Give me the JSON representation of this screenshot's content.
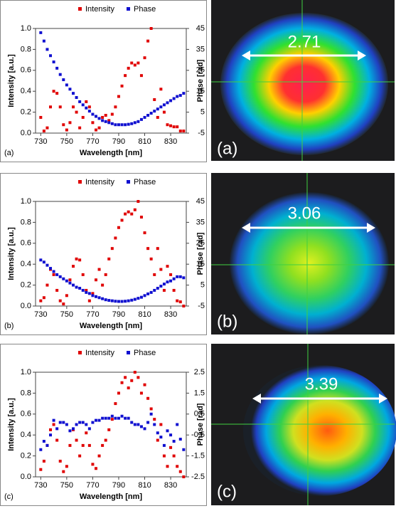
{
  "chart_data": [
    {
      "type": "scatter",
      "panel_label": "(a)",
      "xlabel": "Wavelength [nm]",
      "ylabel": "Intensity [a.u.]",
      "y2label": "Phase [rad]",
      "x": [
        730,
        732.5,
        735,
        737.5,
        740,
        742.5,
        745,
        747.5,
        750,
        752.5,
        755,
        757.5,
        760,
        762.5,
        765,
        767.5,
        770,
        772.5,
        775,
        777.5,
        780,
        782.5,
        785,
        787.5,
        790,
        792.5,
        795,
        797.5,
        800,
        802.5,
        805,
        807.5,
        810,
        812.5,
        815,
        817.5,
        820,
        822.5,
        825,
        827.5,
        830,
        832.5,
        835,
        837.5,
        840
      ],
      "series": [
        {
          "name": "Intensity",
          "color": "#e00000",
          "values": [
            0.15,
            0.02,
            0.05,
            0.25,
            0.4,
            0.38,
            0.25,
            0.08,
            0.03,
            0.1,
            0.25,
            0.2,
            0.05,
            0.15,
            0.3,
            0.25,
            0.1,
            0.03,
            0.05,
            0.15,
            0.17,
            0.12,
            0.18,
            0.25,
            0.35,
            0.45,
            0.55,
            0.62,
            0.67,
            0.65,
            0.67,
            0.55,
            0.72,
            0.88,
            1.0,
            0.32,
            0.15,
            0.42,
            0.2,
            0.08,
            0.07,
            0.06,
            0.06,
            0.02,
            0.02
          ]
        },
        {
          "name": "Phase",
          "color": "#1010d0",
          "axis": "y2",
          "values": [
            43,
            39,
            35,
            32,
            29,
            26,
            23,
            20.5,
            18,
            16,
            14,
            12,
            10,
            8.5,
            7,
            5.5,
            4,
            3,
            2,
            1,
            0.5,
            0,
            -0.5,
            -1,
            -1,
            -1,
            -1,
            -0.8,
            -0.5,
            0,
            0.5,
            1.5,
            2.5,
            3.5,
            4.5,
            5.5,
            6.5,
            7.5,
            8.5,
            9.5,
            10.5,
            11.5,
            12.5,
            13,
            14
          ]
        }
      ],
      "xlim": [
        726,
        842
      ],
      "xticks": [
        730,
        750,
        770,
        790,
        810,
        830
      ],
      "ylim": [
        0,
        1
      ],
      "yticks": [
        {
          "value": 0,
          "label": "0.0"
        },
        0.2,
        0.4,
        0.6,
        0.8,
        {
          "value": 1,
          "label": "1.0"
        }
      ],
      "y2lim": [
        -5,
        45
      ],
      "y2ticks": [
        -5,
        5,
        15,
        25,
        35,
        45
      ]
    },
    {
      "type": "scatter",
      "panel_label": "(b)",
      "xlabel": "Wavelength [nm]",
      "ylabel": "Intensity [a.u.]",
      "y2label": "Phase [rad]",
      "x": [
        730,
        732.5,
        735,
        737.5,
        740,
        742.5,
        745,
        747.5,
        750,
        752.5,
        755,
        757.5,
        760,
        762.5,
        765,
        767.5,
        770,
        772.5,
        775,
        777.5,
        780,
        782.5,
        785,
        787.5,
        790,
        792.5,
        795,
        797.5,
        800,
        802.5,
        805,
        807.5,
        810,
        812.5,
        815,
        817.5,
        820,
        822.5,
        825,
        827.5,
        830,
        832.5,
        835,
        837.5,
        840
      ],
      "series": [
        {
          "name": "Intensity",
          "color": "#e00000",
          "values": [
            0.05,
            0.08,
            0.2,
            0.35,
            0.3,
            0.15,
            0.05,
            0.02,
            0.1,
            0.25,
            0.38,
            0.45,
            0.44,
            0.3,
            0.15,
            0.05,
            0.12,
            0.25,
            0.35,
            0.2,
            0.3,
            0.45,
            0.55,
            0.65,
            0.75,
            0.82,
            0.88,
            0.9,
            0.88,
            0.92,
            1.0,
            0.85,
            0.7,
            0.55,
            0.45,
            0.3,
            0.55,
            0.35,
            0.15,
            0.38,
            0.3,
            0.15,
            0.05,
            0.04,
            0.0
          ]
        },
        {
          "name": "Phase",
          "color": "#1010d0",
          "axis": "y2",
          "values": [
            17,
            16,
            14.5,
            13,
            11.5,
            10,
            9,
            8,
            7,
            6,
            5,
            4,
            3.5,
            2.5,
            1.5,
            1,
            0,
            -0.5,
            -1,
            -1.5,
            -2,
            -2.3,
            -2.5,
            -2.7,
            -2.8,
            -2.8,
            -2.7,
            -2.5,
            -2.2,
            -1.8,
            -1.3,
            -0.8,
            0,
            0.8,
            1.5,
            2.5,
            3.5,
            4.5,
            5.5,
            6.5,
            7,
            8,
            9,
            9,
            8.5
          ]
        }
      ],
      "xlim": [
        726,
        842
      ],
      "xticks": [
        730,
        750,
        770,
        790,
        810,
        830
      ],
      "ylim": [
        0,
        1
      ],
      "yticks": [
        {
          "value": 0,
          "label": "0.0"
        },
        0.2,
        0.4,
        0.6,
        0.8,
        {
          "value": 1,
          "label": "1.0"
        }
      ],
      "y2lim": [
        -5,
        45
      ],
      "y2ticks": [
        -5,
        5,
        15,
        25,
        35,
        45
      ]
    },
    {
      "type": "scatter",
      "panel_label": "(c)",
      "xlabel": "Wavelength [nm]",
      "ylabel": "Intensity [a.u.]",
      "y2label": "Phase [rad]",
      "x": [
        730,
        732.5,
        735,
        737.5,
        740,
        742.5,
        745,
        747.5,
        750,
        752.5,
        755,
        757.5,
        760,
        762.5,
        765,
        767.5,
        770,
        772.5,
        775,
        777.5,
        780,
        782.5,
        785,
        787.5,
        790,
        792.5,
        795,
        797.5,
        800,
        802.5,
        805,
        807.5,
        810,
        812.5,
        815,
        817.5,
        820,
        822.5,
        825,
        827.5,
        830,
        832.5,
        835,
        837.5,
        840
      ],
      "series": [
        {
          "name": "Intensity",
          "color": "#e00000",
          "values": [
            0.07,
            0.15,
            0.3,
            0.45,
            0.5,
            0.35,
            0.15,
            0.05,
            0.1,
            0.3,
            0.45,
            0.35,
            0.2,
            0.3,
            0.42,
            0.3,
            0.12,
            0.08,
            0.2,
            0.3,
            0.35,
            0.45,
            0.55,
            0.7,
            0.8,
            0.9,
            0.95,
            0.85,
            0.92,
            1.0,
            0.95,
            0.8,
            0.88,
            0.75,
            0.65,
            0.55,
            0.35,
            0.5,
            0.2,
            0.1,
            0.28,
            0.2,
            0.1,
            0.05,
            0.0
          ]
        },
        {
          "name": "Phase",
          "color": "#1010d0",
          "axis": "y2",
          "values": [
            -1.2,
            -0.8,
            -1.0,
            -0.5,
            0.2,
            -0.2,
            0.1,
            0.1,
            0.0,
            -0.3,
            -0.2,
            0.0,
            0.1,
            0.1,
            0.0,
            -0.2,
            0.1,
            0.2,
            0.2,
            0.3,
            0.3,
            0.3,
            0.4,
            0.3,
            0.3,
            0.4,
            0.3,
            0.3,
            0.1,
            0.0,
            0.0,
            -0.1,
            -0.2,
            0.1,
            0.5,
            0.0,
            -0.4,
            -0.6,
            -1.0,
            -0.3,
            -0.5,
            -0.8,
            0.0,
            -0.7,
            -1.2
          ]
        }
      ],
      "xlim": [
        726,
        842
      ],
      "xticks": [
        730,
        750,
        770,
        790,
        810,
        830
      ],
      "ylim": [
        0,
        1
      ],
      "yticks": [
        {
          "value": 0,
          "label": "0.0"
        },
        0.2,
        0.4,
        0.6,
        0.8,
        {
          "value": 1,
          "label": "1.0"
        }
      ],
      "y2lim": [
        -2.5,
        2.5
      ],
      "y2ticks": [
        -2.5,
        -1.5,
        -0.5,
        0.5,
        1.5,
        2.5
      ]
    }
  ],
  "images": [
    {
      "label": "(a)",
      "measure": "2.71"
    },
    {
      "label": "(b)",
      "measure": "3.06"
    },
    {
      "label": "(c)",
      "measure": "3.39"
    }
  ]
}
